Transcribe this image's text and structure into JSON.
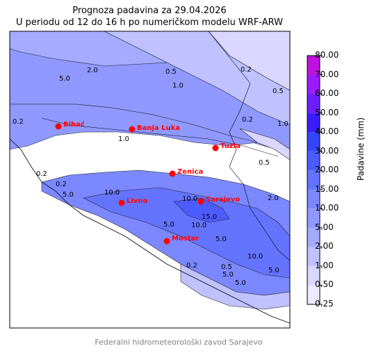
{
  "title": "Prognoza padavina za 29.04.2026",
  "subtitle": "U periodu od 12 do 16 h po numeričkom modelu WRF-ARW",
  "colorbar": {
    "label": "Padavine (mm)",
    "ticks": [
      "0.25",
      "0.50",
      "1.00",
      "2.00",
      "5.00",
      "10.00",
      "15.00",
      "20.00",
      "30.00",
      "40.00",
      "50.00",
      "60.00",
      "70.00",
      "80.00"
    ],
    "colors": [
      "#eceaff",
      "#d9d6ff",
      "#bfc2ff",
      "#a5abff",
      "#8f99ff",
      "#7b88ff",
      "#6474ff",
      "#4d5cff",
      "#3444ff",
      "#3a1cff",
      "#6d1dff",
      "#9d1aff",
      "#c010dd"
    ]
  },
  "cities": [
    {
      "name": "Bihać"
    },
    {
      "name": "Banja Luka"
    },
    {
      "name": "Tuzla"
    },
    {
      "name": "Zenica"
    },
    {
      "name": "Livno"
    },
    {
      "name": "Sarajevo"
    },
    {
      "name": "Mostar"
    }
  ],
  "contour_labels": [
    "2.0",
    "5.0",
    "0.5",
    "1.0",
    "0.2",
    "0.5",
    "1.0",
    "1.0",
    "10.0",
    "5.0",
    "0.2",
    "10.0",
    "10.0",
    "5.0",
    "15.0",
    "5.0",
    "5.0",
    "0.2",
    "0.5",
    "2.0",
    "5.0",
    "10.0",
    "0.2",
    "0.5",
    "5.0",
    "0.2",
    "0.2"
  ],
  "credit": "Federalni hidrometeorološki zavod Sarajevo",
  "colors": {
    "city_marker": "#ff0000",
    "city_label": "#ff0000"
  }
}
